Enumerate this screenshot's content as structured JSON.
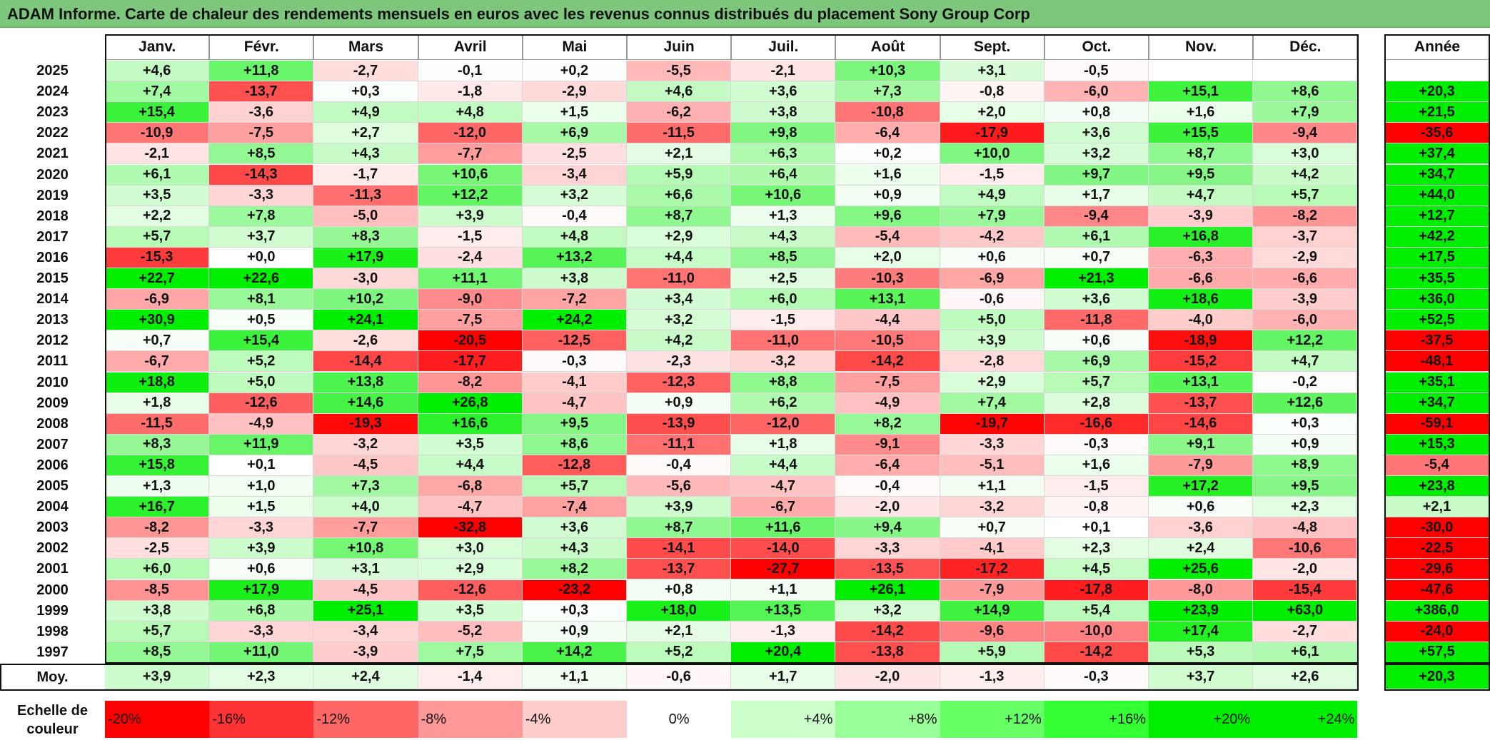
{
  "title": "ADAM Informe. Carte de chaleur des rendements mensuels en euros avec les revenus connus distribués du placement Sony Group Corp",
  "chart_data": {
    "type": "heatmap",
    "title": "ADAM Informe. Carte de chaleur des rendements mensuels en euros avec les revenus connus distribués du placement Sony Group Corp",
    "months": [
      "Janv.",
      "Févr.",
      "Mars",
      "Avril",
      "Mai",
      "Juin",
      "Juil.",
      "Août",
      "Sept.",
      "Oct.",
      "Nov.",
      "Déc."
    ],
    "year_header": "Année",
    "rows": [
      {
        "year": "2025",
        "values": [
          "+4,6",
          "+11,8",
          "-2,7",
          "-0,1",
          "+0,2",
          "-5,5",
          "-2,1",
          "+10,3",
          "+3,1",
          "-0,5",
          "",
          ""
        ],
        "annual": ""
      },
      {
        "year": "2024",
        "values": [
          "+7,4",
          "-13,7",
          "+0,3",
          "-1,8",
          "-2,9",
          "+4,6",
          "+3,6",
          "+7,3",
          "-0,8",
          "-6,0",
          "+15,1",
          "+8,6"
        ],
        "annual": "+20,3"
      },
      {
        "year": "2023",
        "values": [
          "+15,4",
          "-3,6",
          "+4,9",
          "+4,8",
          "+1,5",
          "-6,2",
          "+3,8",
          "-10,8",
          "+2,0",
          "+0,8",
          "+1,6",
          "+7,9"
        ],
        "annual": "+21,5"
      },
      {
        "year": "2022",
        "values": [
          "-10,9",
          "-7,5",
          "+2,7",
          "-12,0",
          "+6,9",
          "-11,5",
          "+9,8",
          "-6,4",
          "-17,9",
          "+3,6",
          "+15,5",
          "-9,4"
        ],
        "annual": "-35,6"
      },
      {
        "year": "2021",
        "values": [
          "-2,1",
          "+8,5",
          "+4,3",
          "-7,7",
          "-2,5",
          "+2,1",
          "+6,3",
          "+0,2",
          "+10,0",
          "+3,2",
          "+8,7",
          "+3,0"
        ],
        "annual": "+37,4"
      },
      {
        "year": "2020",
        "values": [
          "+6,1",
          "-14,3",
          "-1,7",
          "+10,6",
          "-3,4",
          "+5,9",
          "+6,4",
          "+1,6",
          "-1,5",
          "+9,7",
          "+9,5",
          "+4,2"
        ],
        "annual": "+34,7"
      },
      {
        "year": "2019",
        "values": [
          "+3,5",
          "-3,3",
          "-11,3",
          "+12,2",
          "+3,2",
          "+6,6",
          "+10,6",
          "+0,9",
          "+4,9",
          "+1,7",
          "+4,7",
          "+5,7"
        ],
        "annual": "+44,0"
      },
      {
        "year": "2018",
        "values": [
          "+2,2",
          "+7,8",
          "-5,0",
          "+3,9",
          "-0,4",
          "+8,7",
          "+1,3",
          "+9,6",
          "+7,9",
          "-9,4",
          "-3,9",
          "-8,2"
        ],
        "annual": "+12,7"
      },
      {
        "year": "2017",
        "values": [
          "+5,7",
          "+3,7",
          "+8,3",
          "-1,5",
          "+4,8",
          "+2,9",
          "+4,3",
          "-5,4",
          "-4,2",
          "+6,1",
          "+16,8",
          "-3,7"
        ],
        "annual": "+42,2"
      },
      {
        "year": "2016",
        "values": [
          "-15,3",
          "+0,0",
          "+17,9",
          "-2,4",
          "+13,2",
          "+4,4",
          "+8,5",
          "+2,0",
          "+0,6",
          "+0,7",
          "-6,3",
          "-2,9"
        ],
        "annual": "+17,5"
      },
      {
        "year": "2015",
        "values": [
          "+22,7",
          "+22,6",
          "-3,0",
          "+11,1",
          "+3,8",
          "-11,0",
          "+2,5",
          "-10,3",
          "-6,9",
          "+21,3",
          "-6,6",
          "-6,6"
        ],
        "annual": "+35,5"
      },
      {
        "year": "2014",
        "values": [
          "-6,9",
          "+8,1",
          "+10,2",
          "-9,0",
          "-7,2",
          "+3,4",
          "+6,0",
          "+13,1",
          "-0,6",
          "+3,6",
          "+18,6",
          "-3,9"
        ],
        "annual": "+36,0"
      },
      {
        "year": "2013",
        "values": [
          "+30,9",
          "+0,5",
          "+24,1",
          "-7,5",
          "+24,2",
          "+3,2",
          "-1,5",
          "-4,4",
          "+5,0",
          "-11,8",
          "-4,0",
          "-6,0"
        ],
        "annual": "+52,5"
      },
      {
        "year": "2012",
        "values": [
          "+0,7",
          "+15,4",
          "-2,6",
          "-20,5",
          "-12,5",
          "+4,2",
          "-11,0",
          "-10,5",
          "+3,9",
          "+0,6",
          "-18,9",
          "+12,2"
        ],
        "annual": "-37,5"
      },
      {
        "year": "2011",
        "values": [
          "-6,7",
          "+5,2",
          "-14,4",
          "-17,7",
          "-0,3",
          "-2,3",
          "-3,2",
          "-14,2",
          "-2,8",
          "+6,9",
          "-15,2",
          "+4,7"
        ],
        "annual": "-48,1"
      },
      {
        "year": "2010",
        "values": [
          "+18,8",
          "+5,0",
          "+13,8",
          "-8,2",
          "-4,1",
          "-12,3",
          "+8,8",
          "-7,5",
          "+2,9",
          "+5,7",
          "+13,1",
          "-0,2"
        ],
        "annual": "+35,1"
      },
      {
        "year": "2009",
        "values": [
          "+1,8",
          "-12,6",
          "+14,6",
          "+26,8",
          "-4,7",
          "+0,9",
          "+6,2",
          "-4,9",
          "+7,4",
          "+2,8",
          "-13,7",
          "+12,6"
        ],
        "annual": "+34,7"
      },
      {
        "year": "2008",
        "values": [
          "-11,5",
          "-4,9",
          "-19,3",
          "+16,6",
          "+9,5",
          "-13,9",
          "-12,0",
          "+8,2",
          "-19,7",
          "-16,6",
          "-14,6",
          "+0,3"
        ],
        "annual": "-59,1"
      },
      {
        "year": "2007",
        "values": [
          "+8,3",
          "+11,9",
          "-3,2",
          "+3,5",
          "+8,6",
          "-11,1",
          "+1,8",
          "-9,1",
          "-3,3",
          "-0,3",
          "+9,1",
          "+0,9"
        ],
        "annual": "+15,3"
      },
      {
        "year": "2006",
        "values": [
          "+15,8",
          "+0,1",
          "-4,5",
          "+4,4",
          "-12,8",
          "-0,4",
          "+4,4",
          "-6,4",
          "-5,1",
          "+1,6",
          "-7,9",
          "+8,9"
        ],
        "annual": "-5,4"
      },
      {
        "year": "2005",
        "values": [
          "+1,3",
          "+1,0",
          "+7,3",
          "-6,8",
          "+5,7",
          "-5,6",
          "-4,7",
          "-0,4",
          "+1,1",
          "-1,5",
          "+17,2",
          "+9,5"
        ],
        "annual": "+23,8"
      },
      {
        "year": "2004",
        "values": [
          "+16,7",
          "+1,5",
          "+4,0",
          "-4,7",
          "-7,4",
          "+3,9",
          "-6,7",
          "-2,0",
          "-3,2",
          "-0,8",
          "+0,6",
          "+2,3"
        ],
        "annual": "+2,1"
      },
      {
        "year": "2003",
        "values": [
          "-8,2",
          "-3,3",
          "-7,7",
          "-32,8",
          "+3,6",
          "+8,7",
          "+11,6",
          "+9,4",
          "+0,7",
          "+0,1",
          "-3,6",
          "-4,8"
        ],
        "annual": "-30,0"
      },
      {
        "year": "2002",
        "values": [
          "-2,5",
          "+3,9",
          "+10,8",
          "+3,0",
          "+4,3",
          "-14,1",
          "-14,0",
          "-3,3",
          "-4,1",
          "+2,3",
          "+2,4",
          "-10,6"
        ],
        "annual": "-22,5"
      },
      {
        "year": "2001",
        "values": [
          "+6,0",
          "+0,6",
          "+3,1",
          "+2,9",
          "+8,2",
          "-13,7",
          "-27,7",
          "-13,5",
          "-17,2",
          "+4,5",
          "+25,6",
          "-2,0"
        ],
        "annual": "-29,6"
      },
      {
        "year": "2000",
        "values": [
          "-8,5",
          "+17,9",
          "-4,5",
          "-12,6",
          "-23,2",
          "+0,8",
          "+1,1",
          "+26,1",
          "-7,9",
          "-17,8",
          "-8,0",
          "-15,4"
        ],
        "annual": "-47,6"
      },
      {
        "year": "1999",
        "values": [
          "+3,8",
          "+6,8",
          "+25,1",
          "+3,5",
          "+0,3",
          "+18,0",
          "+13,5",
          "+3,2",
          "+14,9",
          "+5,4",
          "+23,9",
          "+63,0"
        ],
        "annual": "+386,0"
      },
      {
        "year": "1998",
        "values": [
          "+5,7",
          "-3,3",
          "-3,4",
          "-5,2",
          "+0,9",
          "+2,1",
          "-1,3",
          "-14,2",
          "-9,6",
          "-10,0",
          "+17,4",
          "-2,7"
        ],
        "annual": "-24,0"
      },
      {
        "year": "1997",
        "values": [
          "+8,5",
          "+11,0",
          "-3,9",
          "+7,5",
          "+14,2",
          "+5,2",
          "+20,4",
          "-13,8",
          "+5,9",
          "-14,2",
          "+5,3",
          "+6,1"
        ],
        "annual": "+57,5"
      }
    ],
    "average": {
      "label": "Moy.",
      "values": [
        "+3,9",
        "+2,3",
        "+2,4",
        "-1,4",
        "+1,1",
        "-0,6",
        "+1,7",
        "-2,0",
        "-1,3",
        "-0,3",
        "+3,7",
        "+2,6"
      ],
      "annual": "+20,3"
    },
    "scale": {
      "label_line1": "Echelle de",
      "label_line2": "couleur",
      "steps": [
        {
          "label": "-20%",
          "color": "#ff0000",
          "align": "left"
        },
        {
          "label": "-16%",
          "color": "#ff3333",
          "align": "left"
        },
        {
          "label": "-12%",
          "color": "#ff6666",
          "align": "left"
        },
        {
          "label": "-8%",
          "color": "#ff9999",
          "align": "left"
        },
        {
          "label": "-4%",
          "color": "#ffcccc",
          "align": "left"
        },
        {
          "label": "0%",
          "color": "#ffffff",
          "align": "center"
        },
        {
          "label": "+4%",
          "color": "#ccffcc",
          "align": "right"
        },
        {
          "label": "+8%",
          "color": "#99ff99",
          "align": "right"
        },
        {
          "label": "+12%",
          "color": "#66ff66",
          "align": "right"
        },
        {
          "label": "+16%",
          "color": "#33ff33",
          "align": "right"
        },
        {
          "label": "+20%",
          "color": "#00ee00",
          "align": "right"
        },
        {
          "label": "+24%",
          "color": "#00ee00",
          "align": "right"
        }
      ]
    }
  }
}
